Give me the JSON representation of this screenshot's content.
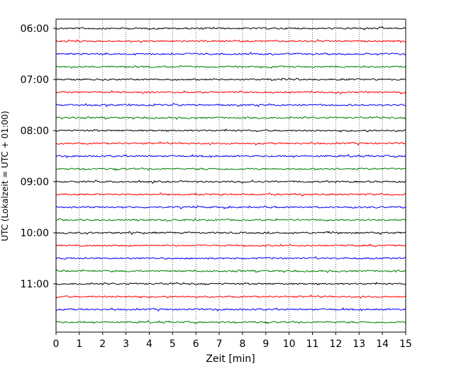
{
  "chart_data": {
    "type": "line",
    "title": "",
    "xlabel": "Zeit  [min]",
    "ylabel": "UTC (Lokalzeit = UTC + 01:00)",
    "xlim": [
      0,
      15
    ],
    "x_ticks": [
      "0",
      "1",
      "2",
      "3",
      "4",
      "5",
      "6",
      "7",
      "8",
      "9",
      "10",
      "11",
      "12",
      "13",
      "14",
      "15"
    ],
    "y_ticks": [
      "06:00",
      "07:00",
      "08:00",
      "09:00",
      "10:00",
      "11:00"
    ],
    "grid": "vertical dotted",
    "trace_interval_minutes": 15,
    "start_time": "06:00",
    "trace_colors": [
      "#000000",
      "#ff0000",
      "#0000ff",
      "#008000"
    ],
    "series": [
      {
        "start": "06:00",
        "color": "#000000"
      },
      {
        "start": "06:15",
        "color": "#ff0000"
      },
      {
        "start": "06:30",
        "color": "#0000ff"
      },
      {
        "start": "06:45",
        "color": "#008000"
      },
      {
        "start": "07:00",
        "color": "#000000"
      },
      {
        "start": "07:15",
        "color": "#ff0000"
      },
      {
        "start": "07:30",
        "color": "#0000ff"
      },
      {
        "start": "07:45",
        "color": "#008000"
      },
      {
        "start": "08:00",
        "color": "#000000"
      },
      {
        "start": "08:15",
        "color": "#ff0000"
      },
      {
        "start": "08:30",
        "color": "#0000ff"
      },
      {
        "start": "08:45",
        "color": "#008000"
      },
      {
        "start": "09:00",
        "color": "#000000"
      },
      {
        "start": "09:15",
        "color": "#ff0000"
      },
      {
        "start": "09:30",
        "color": "#0000ff"
      },
      {
        "start": "09:45",
        "color": "#008000"
      },
      {
        "start": "10:00",
        "color": "#000000"
      },
      {
        "start": "10:15",
        "color": "#ff0000"
      },
      {
        "start": "10:30",
        "color": "#0000ff"
      },
      {
        "start": "10:45",
        "color": "#008000"
      },
      {
        "start": "11:00",
        "color": "#000000"
      },
      {
        "start": "11:15",
        "color": "#ff0000"
      },
      {
        "start": "11:30",
        "color": "#0000ff"
      },
      {
        "start": "11:45",
        "color": "#008000"
      }
    ]
  }
}
